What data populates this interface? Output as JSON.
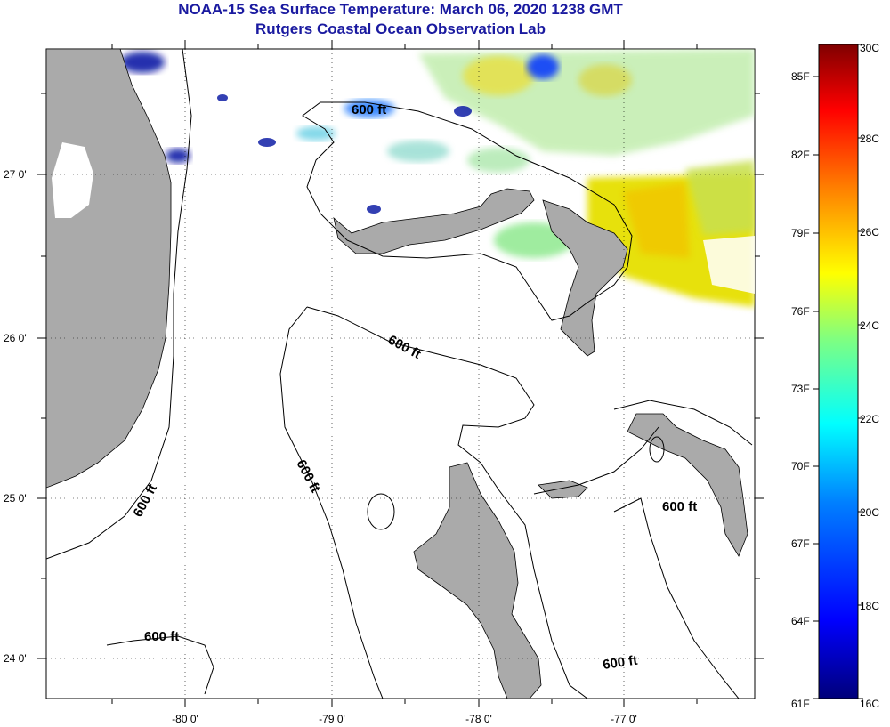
{
  "title": {
    "line1": "NOAA-15 Sea Surface Temperature:  March 06, 2020 1238 GMT",
    "line2": "Rutgers Coastal Ocean Observation Lab"
  },
  "axes": {
    "x_ticks": [
      "-80 0'",
      "-79 0'",
      "-78 0'",
      "-77 0'"
    ],
    "y_ticks": [
      "27 0'",
      "26 0'",
      "25 0'",
      "24 0'"
    ]
  },
  "contour_labels": [
    "600 ft",
    "600 ft",
    "600 ft",
    "600 ft",
    "600 ft",
    "600 ft"
  ],
  "colorbar": {
    "fahrenheit": [
      "85F",
      "82F",
      "79F",
      "76F",
      "73F",
      "70F",
      "67F",
      "64F",
      "61F"
    ],
    "celsius": [
      "30C",
      "28C",
      "26C",
      "24C",
      "22C",
      "20C",
      "18C",
      "16C"
    ]
  },
  "colors": {
    "land": "#aaaaaa",
    "title": "#1a1aa0"
  }
}
